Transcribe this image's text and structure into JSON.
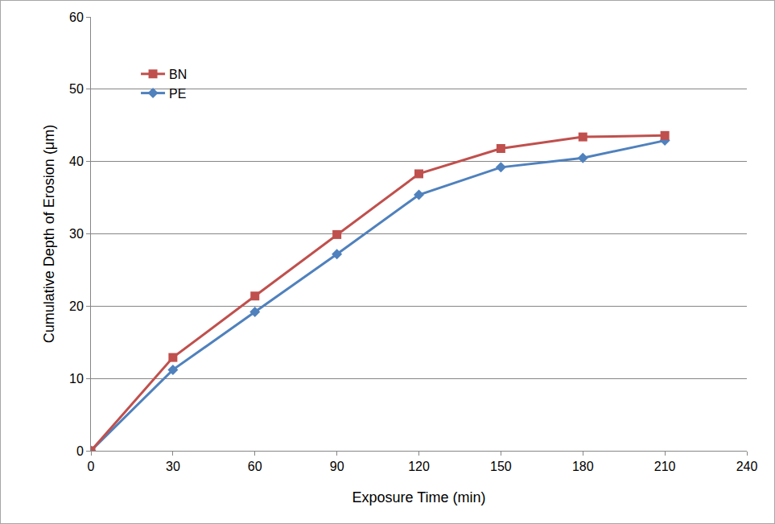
{
  "chart_data": {
    "type": "line",
    "x_label": "Exposure Time (min)",
    "y_label": "Cumulative Depth of Erosion (μm)",
    "x": [
      0,
      30,
      60,
      90,
      120,
      150,
      180,
      210
    ],
    "series": [
      {
        "name": "BN",
        "color": "#c0504d",
        "marker": "square",
        "line_style": "solid",
        "values": [
          0,
          12.9,
          21.4,
          29.9,
          38.3,
          41.8,
          43.4,
          43.6
        ]
      },
      {
        "name": "PE",
        "color": "#4f81bd",
        "marker": "diamond",
        "line_style": "solid",
        "values": [
          0,
          11.2,
          19.2,
          27.2,
          35.4,
          39.2,
          40.5,
          42.9
        ]
      }
    ],
    "xlim": [
      0,
      240
    ],
    "xticks": [
      0,
      30,
      60,
      90,
      120,
      150,
      180,
      210,
      240
    ],
    "ylim": [
      0,
      60
    ],
    "yticks": [
      0,
      10,
      20,
      30,
      40,
      50,
      60
    ],
    "grid": true,
    "legend": "upper left"
  }
}
